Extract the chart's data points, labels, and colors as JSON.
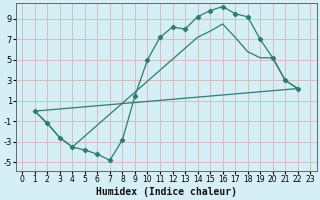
{
  "xlabel": "Humidex (Indice chaleur)",
  "background_color": "#d6eef5",
  "grid_color": "#c8dde8",
  "line_color": "#2d7d6e",
  "xlim": [
    -0.5,
    23.5
  ],
  "ylim": [
    -5.8,
    10.5
  ],
  "xticks": [
    0,
    1,
    2,
    3,
    4,
    5,
    6,
    7,
    8,
    9,
    10,
    11,
    12,
    13,
    14,
    15,
    16,
    17,
    18,
    19,
    20,
    21,
    22,
    23
  ],
  "yticks": [
    -5,
    -3,
    -1,
    1,
    3,
    5,
    7,
    9
  ],
  "line1_x": [
    1,
    2,
    3,
    4,
    5,
    6,
    7,
    8,
    9,
    10,
    11,
    12,
    13,
    14,
    15,
    16,
    17,
    18,
    19,
    20,
    21,
    22
  ],
  "line1_y": [
    0.0,
    -1.2,
    -2.6,
    -3.5,
    -3.8,
    -4.2,
    -4.8,
    -2.8,
    1.5,
    5.0,
    7.2,
    8.2,
    8.0,
    9.2,
    9.8,
    10.2,
    9.5,
    9.2,
    7.0,
    5.2,
    3.0,
    2.2
  ],
  "line2_x": [
    1,
    2,
    3,
    4,
    14,
    15,
    16,
    17,
    18,
    19,
    20,
    21,
    22
  ],
  "line2_y": [
    0.0,
    -1.2,
    -2.6,
    -3.5,
    7.2,
    7.8,
    8.5,
    7.2,
    5.8,
    5.2,
    5.2,
    3.0,
    2.2
  ],
  "line3_x": [
    1,
    22
  ],
  "line3_y": [
    0.0,
    2.2
  ]
}
